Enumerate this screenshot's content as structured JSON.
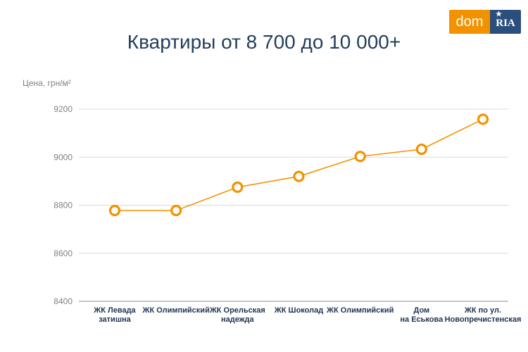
{
  "brand": {
    "dom_label": "dom",
    "ria_label": "RIA",
    "accent": "#f39200",
    "secondary": "#2a4f7d"
  },
  "chart_data": {
    "type": "line",
    "title": "Квартиры от 8 700 до 10 000+",
    "ylabel": "Цена, грн/м²",
    "xlabel": "",
    "categories": [
      [
        "ЖК Левада",
        "затишна"
      ],
      [
        "ЖК Олимпийский"
      ],
      [
        "ЖК Орельская",
        "надежда"
      ],
      [
        "ЖК Шоколад"
      ],
      [
        "ЖК Олимпийский"
      ],
      [
        "Дом",
        "на Еськова"
      ],
      [
        "ЖК по ул.",
        "Новопречистенская"
      ]
    ],
    "series": [
      {
        "values": [
          8778,
          8778,
          8875,
          8920,
          9003,
          9033,
          9158
        ],
        "color": "#f39200"
      }
    ],
    "yticks": [
      8400,
      8600,
      8800,
      9000,
      9200
    ],
    "ylim": [
      8400,
      9220
    ],
    "grid": true,
    "legend": "none"
  }
}
